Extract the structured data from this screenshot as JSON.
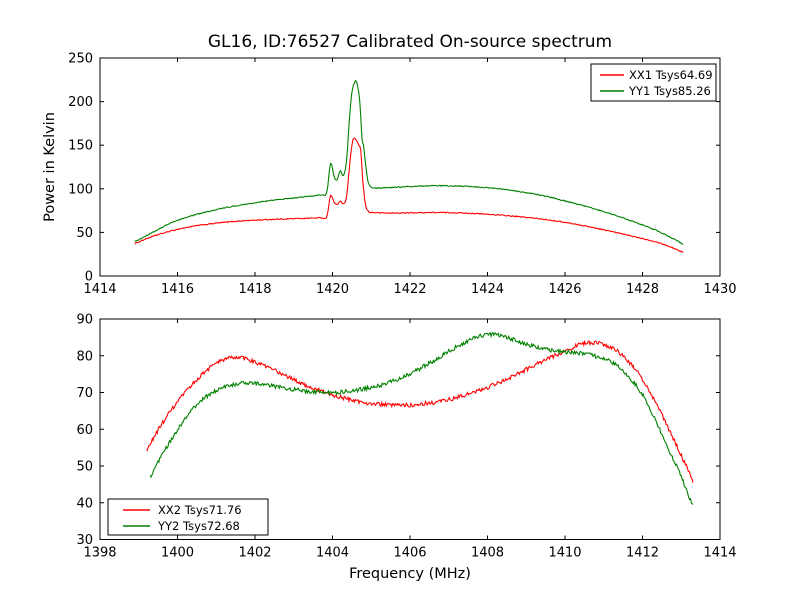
{
  "figure": {
    "title": "GL16, ID:76527 Calibrated On-source spectrum"
  },
  "chart_data": [
    {
      "type": "line",
      "title": "GL16, ID:76527 Calibrated On-source spectrum",
      "xlabel": "",
      "ylabel": "Power in Kelvin",
      "xlim": [
        1414,
        1430
      ],
      "ylim": [
        0,
        250
      ],
      "xticks": [
        1414,
        1416,
        1418,
        1420,
        1422,
        1424,
        1426,
        1428,
        1430
      ],
      "yticks": [
        0,
        50,
        100,
        150,
        200,
        250
      ],
      "grid": false,
      "legend_position": "upper right",
      "noise_kelvin": 0.55,
      "series": [
        {
          "name": "XX1 Tsys64.69",
          "color": "#ff0000",
          "points": [
            [
              1414.9,
              37
            ],
            [
              1415.1,
              41
            ],
            [
              1415.4,
              46
            ],
            [
              1415.7,
              50
            ],
            [
              1416.0,
              53.5
            ],
            [
              1416.4,
              57
            ],
            [
              1416.8,
              59.5
            ],
            [
              1417.2,
              61.5
            ],
            [
              1417.6,
              63
            ],
            [
              1418.0,
              64
            ],
            [
              1418.5,
              65
            ],
            [
              1419.0,
              65.8
            ],
            [
              1419.4,
              66.3
            ],
            [
              1419.7,
              66.8
            ],
            [
              1419.85,
              68
            ],
            [
              1419.95,
              92
            ],
            [
              1420.05,
              84
            ],
            [
              1420.12,
              82
            ],
            [
              1420.2,
              85.5
            ],
            [
              1420.28,
              83
            ],
            [
              1420.36,
              90
            ],
            [
              1420.44,
              126
            ],
            [
              1420.5,
              150
            ],
            [
              1420.55,
              158
            ],
            [
              1420.6,
              156
            ],
            [
              1420.68,
              150
            ],
            [
              1420.73,
              144
            ],
            [
              1420.78,
              110
            ],
            [
              1420.85,
              82
            ],
            [
              1420.92,
              74.5
            ],
            [
              1421.0,
              73
            ],
            [
              1421.3,
              72.3
            ],
            [
              1421.7,
              72.2
            ],
            [
              1422.1,
              72.5
            ],
            [
              1422.5,
              72.8
            ],
            [
              1423.0,
              72.7
            ],
            [
              1423.4,
              72.2
            ],
            [
              1423.8,
              71.3
            ],
            [
              1424.2,
              70.2
            ],
            [
              1424.6,
              68.8
            ],
            [
              1425.0,
              67.2
            ],
            [
              1425.5,
              64.8
            ],
            [
              1426.0,
              61.5
            ],
            [
              1426.5,
              57.5
            ],
            [
              1427.0,
              53
            ],
            [
              1427.5,
              48
            ],
            [
              1428.0,
              43
            ],
            [
              1428.4,
              38.5
            ],
            [
              1428.8,
              32
            ],
            [
              1429.05,
              27
            ]
          ]
        },
        {
          "name": "YY1 Tsys85.26",
          "color": "#008000",
          "points": [
            [
              1414.9,
              39.5
            ],
            [
              1415.1,
              44
            ],
            [
              1415.4,
              51
            ],
            [
              1415.7,
              58
            ],
            [
              1416.0,
              64
            ],
            [
              1416.4,
              69.5
            ],
            [
              1416.8,
              74
            ],
            [
              1417.2,
              78
            ],
            [
              1417.6,
              81
            ],
            [
              1418.0,
              84
            ],
            [
              1418.5,
              87
            ],
            [
              1419.0,
              89.5
            ],
            [
              1419.4,
              91.5
            ],
            [
              1419.7,
              93
            ],
            [
              1419.85,
              96
            ],
            [
              1419.95,
              129
            ],
            [
              1420.05,
              113
            ],
            [
              1420.12,
              110
            ],
            [
              1420.2,
              121
            ],
            [
              1420.28,
              115
            ],
            [
              1420.36,
              131
            ],
            [
              1420.44,
              182
            ],
            [
              1420.5,
              210
            ],
            [
              1420.56,
              221
            ],
            [
              1420.62,
              223
            ],
            [
              1420.7,
              202
            ],
            [
              1420.76,
              158
            ],
            [
              1420.8,
              150
            ],
            [
              1420.88,
              119
            ],
            [
              1420.95,
              104
            ],
            [
              1421.1,
              101
            ],
            [
              1421.5,
              101.5
            ],
            [
              1422.0,
              102.5
            ],
            [
              1422.4,
              103.2
            ],
            [
              1422.8,
              103.5
            ],
            [
              1423.2,
              103.2
            ],
            [
              1423.6,
              102.5
            ],
            [
              1424.0,
              101.2
            ],
            [
              1424.4,
              99.5
            ],
            [
              1424.8,
              97
            ],
            [
              1425.2,
              94
            ],
            [
              1425.6,
              90.5
            ],
            [
              1426.0,
              86
            ],
            [
              1426.4,
              81.5
            ],
            [
              1426.8,
              76.5
            ],
            [
              1427.2,
              71
            ],
            [
              1427.6,
              65
            ],
            [
              1428.0,
              58.5
            ],
            [
              1428.4,
              51.5
            ],
            [
              1428.8,
              42.5
            ],
            [
              1429.05,
              36.5
            ]
          ]
        }
      ]
    },
    {
      "type": "line",
      "title": "",
      "xlabel": "Frequency (MHz)",
      "ylabel": "",
      "xlim": [
        1398,
        1414
      ],
      "ylim": [
        30,
        90
      ],
      "xticks": [
        1398,
        1400,
        1402,
        1404,
        1406,
        1408,
        1410,
        1412,
        1414
      ],
      "yticks": [
        30,
        40,
        50,
        60,
        70,
        80,
        90
      ],
      "grid": false,
      "legend_position": "lower left",
      "noise_kelvin": 0.55,
      "series": [
        {
          "name": "XX2 Tsys71.76",
          "color": "#ff0000",
          "points": [
            [
              1399.2,
              54
            ],
            [
              1399.35,
              57
            ],
            [
              1399.6,
              61.5
            ],
            [
              1399.9,
              66
            ],
            [
              1400.2,
              70
            ],
            [
              1400.5,
              73.5
            ],
            [
              1400.8,
              76.5
            ],
            [
              1401.1,
              78.5
            ],
            [
              1401.4,
              79.5
            ],
            [
              1401.7,
              79.3
            ],
            [
              1402.0,
              78.3
            ],
            [
              1402.4,
              76.5
            ],
            [
              1402.8,
              74.5
            ],
            [
              1403.2,
              72.5
            ],
            [
              1403.6,
              70.8
            ],
            [
              1404.0,
              69.3
            ],
            [
              1404.4,
              68.2
            ],
            [
              1404.8,
              67.3
            ],
            [
              1405.2,
              66.8
            ],
            [
              1405.6,
              66.5
            ],
            [
              1406.0,
              66.6
            ],
            [
              1406.4,
              67.0
            ],
            [
              1406.8,
              67.6
            ],
            [
              1407.2,
              68.6
            ],
            [
              1407.6,
              69.9
            ],
            [
              1408.0,
              71.4
            ],
            [
              1408.4,
              73.2
            ],
            [
              1408.8,
              75.2
            ],
            [
              1409.2,
              77.3
            ],
            [
              1409.6,
              79.4
            ],
            [
              1410.0,
              81.3
            ],
            [
              1410.3,
              82.7
            ],
            [
              1410.6,
              83.5
            ],
            [
              1410.9,
              83.3
            ],
            [
              1411.2,
              82.2
            ],
            [
              1411.5,
              80.0
            ],
            [
              1411.8,
              76.5
            ],
            [
              1412.0,
              73.5
            ],
            [
              1412.2,
              70.0
            ],
            [
              1412.45,
              65.0
            ],
            [
              1412.7,
              59.5
            ],
            [
              1412.95,
              54.0
            ],
            [
              1413.15,
              49.5
            ],
            [
              1413.3,
              45.5
            ]
          ]
        },
        {
          "name": "YY2 Tsys72.68",
          "color": "#008000",
          "points": [
            [
              1399.3,
              47
            ],
            [
              1399.5,
              51
            ],
            [
              1399.8,
              56.5
            ],
            [
              1400.1,
              61.5
            ],
            [
              1400.4,
              65.5
            ],
            [
              1400.7,
              68.5
            ],
            [
              1401.0,
              70.5
            ],
            [
              1401.3,
              71.8
            ],
            [
              1401.6,
              72.4
            ],
            [
              1401.9,
              72.5
            ],
            [
              1402.2,
              72.2
            ],
            [
              1402.6,
              71.5
            ],
            [
              1403.0,
              70.8
            ],
            [
              1403.4,
              70.3
            ],
            [
              1403.8,
              70.0
            ],
            [
              1404.2,
              70.1
            ],
            [
              1404.6,
              70.6
            ],
            [
              1405.0,
              71.4
            ],
            [
              1405.4,
              72.5
            ],
            [
              1405.8,
              74.1
            ],
            [
              1406.2,
              76.2
            ],
            [
              1406.6,
              78.6
            ],
            [
              1407.0,
              81.2
            ],
            [
              1407.4,
              83.6
            ],
            [
              1407.7,
              85.0
            ],
            [
              1408.0,
              85.8
            ],
            [
              1408.3,
              85.6
            ],
            [
              1408.6,
              84.7
            ],
            [
              1409.0,
              83.2
            ],
            [
              1409.4,
              82.0
            ],
            [
              1409.8,
              81.2
            ],
            [
              1410.2,
              80.9
            ],
            [
              1410.6,
              80.3
            ],
            [
              1411.0,
              79.2
            ],
            [
              1411.3,
              77.5
            ],
            [
              1411.6,
              74.8
            ],
            [
              1411.9,
              71.0
            ],
            [
              1412.15,
              66.5
            ],
            [
              1412.4,
              61.0
            ],
            [
              1412.65,
              55.0
            ],
            [
              1412.9,
              49.5
            ],
            [
              1413.1,
              44.5
            ],
            [
              1413.3,
              39.0
            ]
          ]
        }
      ]
    }
  ]
}
